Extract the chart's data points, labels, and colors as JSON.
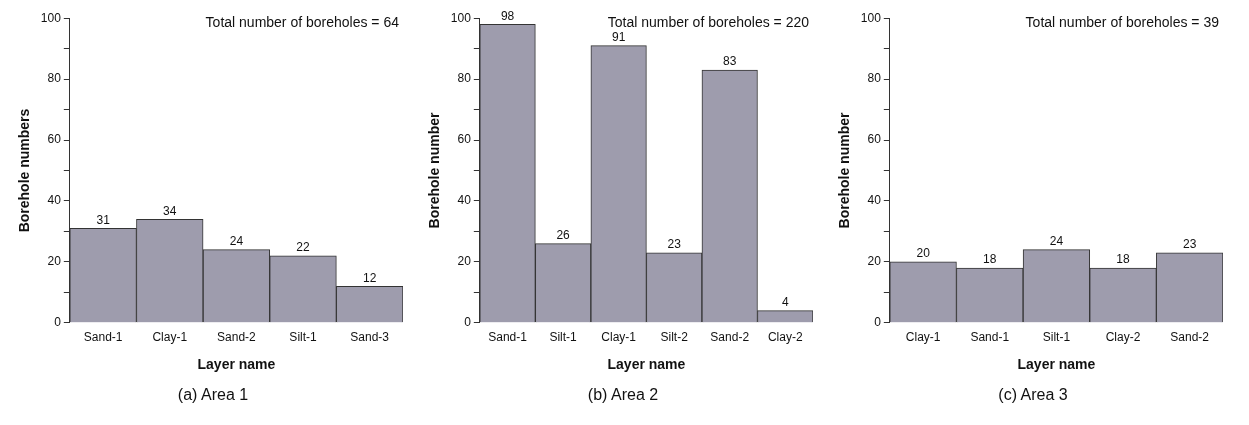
{
  "chart_data": [
    {
      "type": "bar",
      "xlabel": "Layer name",
      "ylabel": "Borehole numbers",
      "categories": [
        "Sand-1",
        "Clay-1",
        "Sand-2",
        "Silt-1",
        "Sand-3"
      ],
      "values": [
        31,
        34,
        24,
        22,
        12
      ],
      "color": "#9e9cad",
      "data_labels": true,
      "ylim": [
        0,
        100
      ],
      "yticks": [
        0,
        {
          "value": 10,
          "label": null
        },
        20,
        {
          "value": 30,
          "label": null
        },
        40,
        {
          "value": 50,
          "label": null
        },
        60,
        {
          "value": 70,
          "label": null
        },
        80,
        {
          "value": 90,
          "label": null
        },
        100
      ],
      "grid": false,
      "legend": false,
      "annotations": [
        "Total number of boreholes = 64",
        "(a)  Area 1"
      ]
    },
    {
      "type": "bar",
      "xlabel": "Layer name",
      "ylabel": "Borehole number",
      "categories": [
        "Sand-1",
        "Silt-1",
        "Clay-1",
        "Silt-2",
        "Sand-2",
        "Clay-2"
      ],
      "values": [
        98,
        26,
        91,
        23,
        83,
        4
      ],
      "color": "#9e9cad",
      "data_labels": true,
      "ylim": [
        0,
        100
      ],
      "yticks": [
        0,
        {
          "value": 10,
          "label": null
        },
        20,
        {
          "value": 30,
          "label": null
        },
        40,
        {
          "value": 50,
          "label": null
        },
        60,
        {
          "value": 70,
          "label": null
        },
        80,
        {
          "value": 90,
          "label": null
        },
        100
      ],
      "grid": false,
      "legend": false,
      "annotations": [
        "Total number of boreholes = 220",
        "(b)  Area 2"
      ]
    },
    {
      "type": "bar",
      "xlabel": "Layer name",
      "ylabel": "Borehole number",
      "categories": [
        "Clay-1",
        "Sand-1",
        "Silt-1",
        "Clay-2",
        "Sand-2"
      ],
      "values": [
        20,
        18,
        24,
        18,
        23
      ],
      "color": "#9e9cad",
      "data_labels": true,
      "ylim": [
        0,
        100
      ],
      "yticks": [
        0,
        {
          "value": 10,
          "label": null
        },
        20,
        {
          "value": 30,
          "label": null
        },
        40,
        {
          "value": 50,
          "label": null
        },
        60,
        {
          "value": 70,
          "label": null
        },
        80,
        {
          "value": 90,
          "label": null
        },
        100
      ],
      "grid": false,
      "legend": false,
      "annotations": [
        "Total number of boreholes = 39",
        "(c)  Area 3"
      ]
    }
  ]
}
